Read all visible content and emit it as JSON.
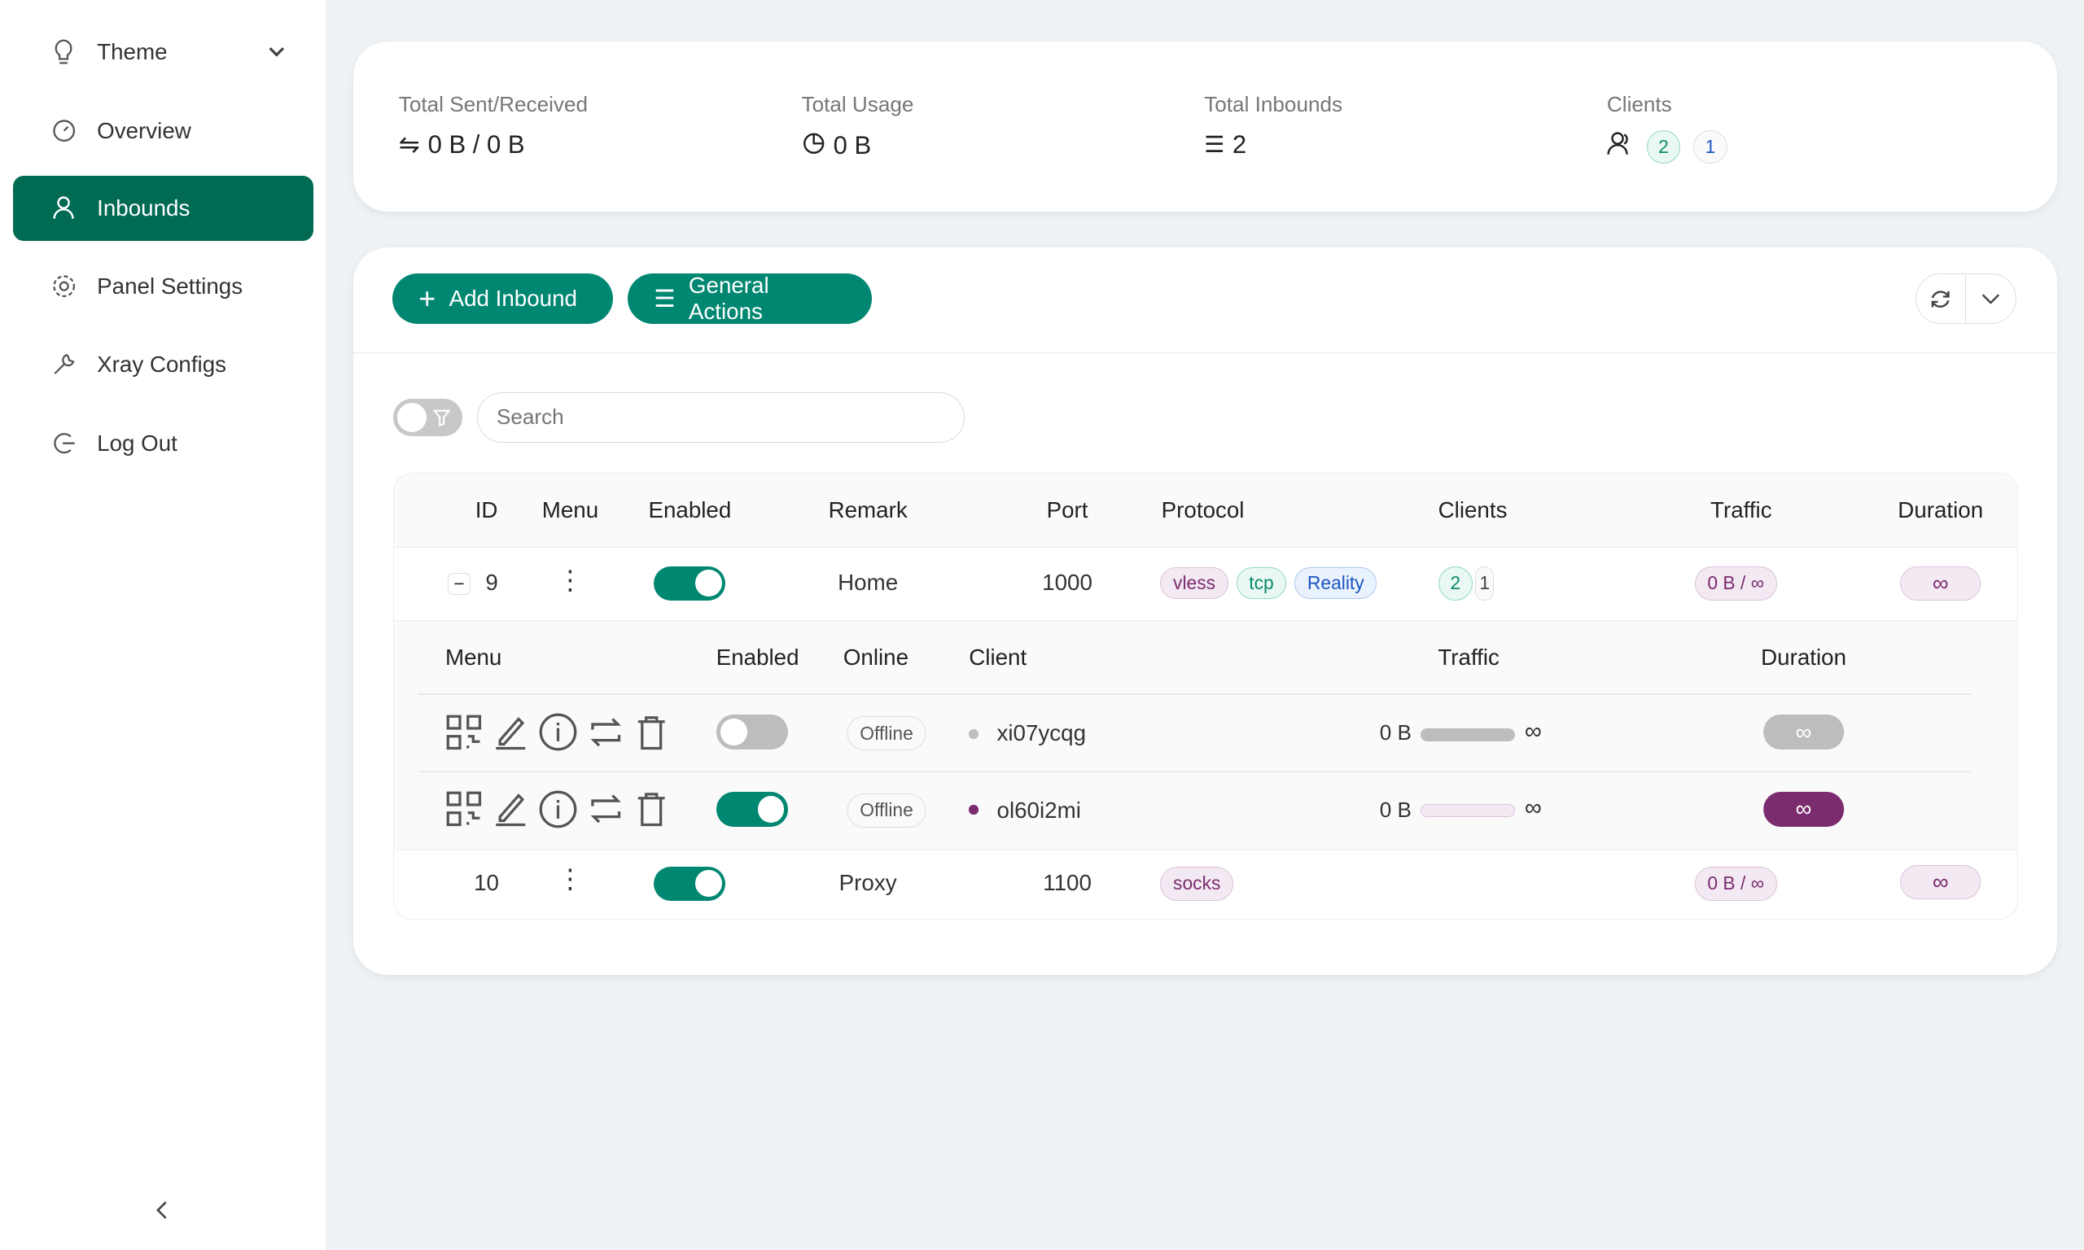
{
  "sidebar": {
    "items": [
      {
        "label": "Theme",
        "icon": "bulb-icon"
      },
      {
        "label": "Overview",
        "icon": "dashboard-icon"
      },
      {
        "label": "Inbounds",
        "icon": "user-icon",
        "active": true
      },
      {
        "label": "Panel Settings",
        "icon": "gear-icon"
      },
      {
        "label": "Xray Configs",
        "icon": "tool-icon"
      },
      {
        "label": "Log Out",
        "icon": "logout-icon"
      }
    ]
  },
  "stats": {
    "sent_received": {
      "label": "Total Sent/Received",
      "value": "0 B / 0 B"
    },
    "usage": {
      "label": "Total Usage",
      "value": "0 B"
    },
    "inbounds": {
      "label": "Total Inbounds",
      "value": "2"
    },
    "clients": {
      "label": "Clients",
      "total": "2",
      "other": "1"
    }
  },
  "toolbar": {
    "add_inbound": "Add Inbound",
    "general_actions": "General Actions"
  },
  "search": {
    "placeholder": "Search"
  },
  "table": {
    "headers": [
      "ID",
      "Menu",
      "Enabled",
      "Remark",
      "Port",
      "Protocol",
      "Clients",
      "Traffic",
      "Duration"
    ],
    "rows": [
      {
        "id": "9",
        "enabled": true,
        "remark": "Home",
        "port": "1000",
        "protocol": [
          "vless",
          "tcp",
          "Reality"
        ],
        "clients": "2",
        "clients_other": "1",
        "traffic": "0 B / ∞",
        "duration": "∞"
      },
      {
        "id": "10",
        "enabled": true,
        "remark": "Proxy",
        "port": "1100",
        "protocol": [
          "socks"
        ],
        "traffic": "0 B / ∞",
        "duration": "∞"
      }
    ],
    "client_headers": [
      "Menu",
      "Enabled",
      "Online",
      "Client",
      "Traffic",
      "Duration"
    ],
    "clients": [
      {
        "enabled": false,
        "online": "Offline",
        "name": "xi07ycqg",
        "traffic": "0 B",
        "limit": "∞",
        "duration": "∞"
      },
      {
        "enabled": true,
        "online": "Offline",
        "name": "ol60i2mi",
        "traffic": "0 B",
        "limit": "∞",
        "duration": "∞"
      }
    ]
  },
  "colors": {
    "accent": "#008771",
    "active_nav": "#006a52",
    "purple": "#7a2c6e"
  }
}
